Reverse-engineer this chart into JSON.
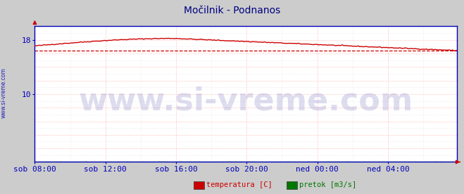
{
  "title": "Močilnik - Podnanos",
  "title_color": "#000080",
  "bg_color": "#cccccc",
  "plot_bg_color": "#ffffff",
  "axis_color": "#0000bb",
  "tick_color": "#0000bb",
  "watermark_text": "www.si-vreme.com",
  "watermark_color": "#4444aa",
  "watermark_alpha": 0.18,
  "watermark_fontsize": 32,
  "side_text": "www.si-vreme.com",
  "side_text_color": "#0000bb",
  "ylim": [
    0,
    20
  ],
  "ytick_positions": [
    10,
    18
  ],
  "ytick_labels": [
    "10",
    "18"
  ],
  "x_labels": [
    "sob 08:00",
    "sob 12:00",
    "sob 16:00",
    "sob 20:00",
    "ned 00:00",
    "ned 04:00"
  ],
  "xtick_positions": [
    0,
    48,
    96,
    144,
    192,
    240
  ],
  "temp_color": "#cc0000",
  "pretok_color": "#007700",
  "avg_value": 16.4,
  "avg_line_color": "#cc0000",
  "legend_items": [
    "temperatura [C]",
    "pretok [m3/s]"
  ],
  "legend_colors": [
    "#cc0000",
    "#007700"
  ],
  "num_points": 288,
  "title_fontsize": 10,
  "tick_fontsize": 8
}
